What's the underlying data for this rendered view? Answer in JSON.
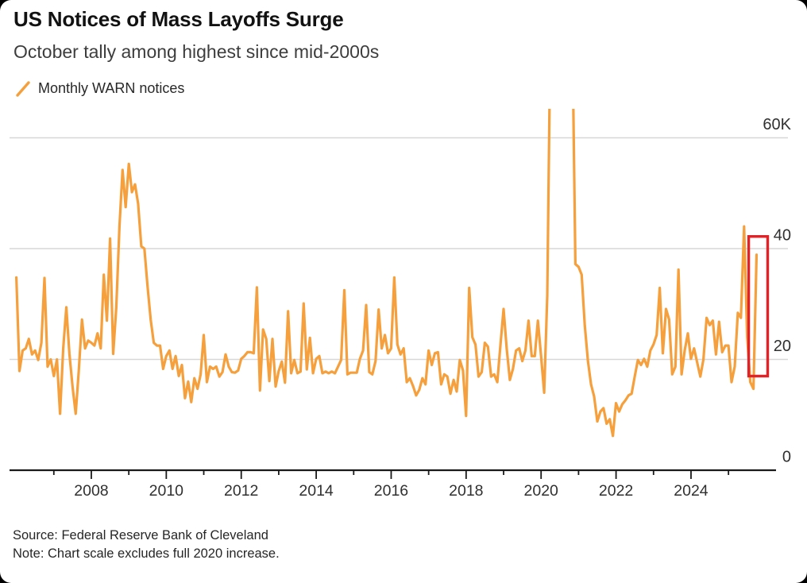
{
  "header": {
    "title": "US Notices of Mass Layoffs Surge",
    "subtitle": "October tally among highest since mid-2000s"
  },
  "legend": {
    "label": "Monthly WARN notices",
    "swatch_color": "#f5a03c"
  },
  "footer": {
    "source": "Source: Federal Reserve Bank of Cleveland",
    "note": "Note: Chart scale excludes full 2020 increase."
  },
  "colors": {
    "line_orange": "#f5a03c",
    "highlight_red": "#e32227",
    "gridline_gray": "#d7d7d7",
    "axis_black": "#1a1a1a",
    "tick_label_gray": "#303030",
    "background": "#ffffff",
    "frame": "#000000"
  },
  "chart_data": {
    "type": "line",
    "title": "US Notices of Mass Layoffs Surge",
    "subtitle": "October tally among highest since mid-2000s",
    "unit": "thousands of WARN notices",
    "ylim": [
      0,
      65
    ],
    "grid": "horizontal-only",
    "legend_position": "top-left",
    "clip_note": "Values above ~65K (full 2020 surge, Apr–Nov 2020) are clipped off the top of the chart",
    "y_ticks": [
      {
        "value": 0,
        "label": "0"
      },
      {
        "value": 20,
        "label": "20"
      },
      {
        "value": 40,
        "label": "40"
      },
      {
        "value": 60,
        "label": "60K"
      }
    ],
    "x_axis": {
      "tick_years": [
        2007,
        2008,
        2009,
        2010,
        2011,
        2012,
        2013,
        2014,
        2015,
        2016,
        2017,
        2018,
        2019,
        2020,
        2021,
        2022,
        2023,
        2024,
        2025
      ],
      "labeled_years": [
        2008,
        2010,
        2012,
        2014,
        2016,
        2018,
        2020,
        2022,
        2024
      ]
    },
    "series": [
      {
        "name": "Monthly WARN notices",
        "color": "#f5a03c",
        "start": "2006-01",
        "frequency": "monthly",
        "values_unit": "thousands",
        "values": [
          34.8,
          17.9,
          21.6,
          22,
          23.7,
          20.9,
          21.6,
          19.9,
          23,
          34.7,
          18.7,
          20,
          17,
          20,
          10.2,
          22,
          29.4,
          21,
          15,
          10.2,
          18,
          27.2,
          22,
          23.4,
          23,
          22.5,
          24.7,
          22,
          35.3,
          27,
          41.8,
          21,
          29.4,
          44,
          54.2,
          47.5,
          55.3,
          50.2,
          51.6,
          48.1,
          40.4,
          40,
          33.3,
          27.2,
          23,
          22.5,
          22.5,
          18.3,
          20.6,
          21.6,
          18.3,
          20.6,
          17,
          19,
          13,
          16,
          12.3,
          16.6,
          14.7,
          17.3,
          24.4,
          15.9,
          18.7,
          18.3,
          18.7,
          16.9,
          17.7,
          20.9,
          18.7,
          17.7,
          17.6,
          18,
          20.1,
          20.6,
          21.3,
          21.3,
          21.1,
          33,
          14.4,
          25.4,
          23.7,
          16.1,
          23.7,
          15.1,
          17.9,
          19.6,
          15.8,
          28.7,
          17.5,
          19.9,
          17.5,
          17.8,
          30.1,
          18.2,
          23.9,
          17.5,
          20.1,
          20.6,
          17.5,
          17.8,
          17.5,
          17.8,
          17.5,
          18.7,
          19.9,
          32.5,
          17.3,
          17.6,
          17.6,
          17.6,
          20.1,
          21.6,
          29.8,
          17.7,
          17.3,
          19.7,
          29,
          22,
          24.4,
          21.1,
          22,
          34.8,
          22.7,
          20.9,
          22,
          15.9,
          16.6,
          15.2,
          13.5,
          14.5,
          16.6,
          15.5,
          21.6,
          19,
          21.1,
          21.3,
          15.5,
          17.3,
          16.9,
          13.8,
          16.3,
          14.2,
          19.9,
          18,
          9.8,
          32.9,
          24,
          22.7,
          16.9,
          17.7,
          23,
          22.3,
          16.9,
          17.3,
          15.9,
          22.7,
          29.1,
          22,
          16.3,
          18.3,
          21.6,
          22,
          19.7,
          21.6,
          27,
          20.6,
          20.6,
          27,
          20.6,
          14,
          31.5,
          80,
          80,
          80,
          80,
          80,
          80,
          80,
          80,
          37.2,
          36.7,
          35.3,
          26.2,
          19.7,
          15.5,
          13.3,
          8.8,
          10.6,
          11.2,
          8.4,
          9.2,
          6.2,
          12.1,
          10.6,
          11.9,
          12.6,
          13.5,
          13.8,
          16.9,
          19.9,
          19,
          20.1,
          18.7,
          21.6,
          22.7,
          24.4,
          32.9,
          21.1,
          29.1,
          27.2,
          17.3,
          18.7,
          36.2,
          17.3,
          21.6,
          24.7,
          20.1,
          22,
          19.4,
          16.9,
          20,
          27.5,
          26.2,
          27,
          20.9,
          26.8,
          21.3,
          22.5,
          22.5,
          15.9,
          18.7,
          28.4,
          27.5,
          44,
          24,
          15.9,
          14.7,
          38.9
        ]
      }
    ],
    "annotation": {
      "type": "highlight-box",
      "color": "#e32227",
      "months": [
        "2025-08",
        "2025-09",
        "2025-10"
      ],
      "value_range_k": [
        17,
        42.2
      ],
      "meaning": "Highlights the latest months; October 2025 tally among highest since mid-2000s"
    }
  }
}
